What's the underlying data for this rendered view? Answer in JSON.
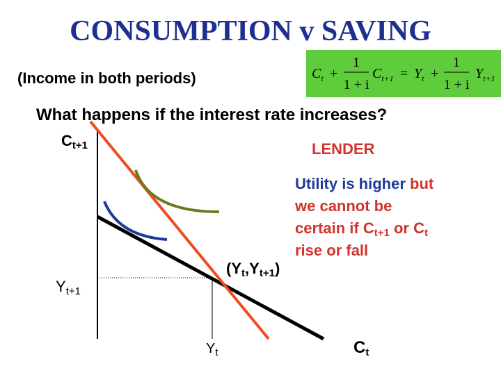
{
  "header": {
    "title": "CONSUMPTION v SAVING",
    "subtitle": "(Income in both periods)"
  },
  "equation": {
    "term_1": {
      "base": "C",
      "sub": "t"
    },
    "plus_1": "+",
    "fraction_1": {
      "num": "1",
      "den": "1 + i"
    },
    "term_2": {
      "base": "C",
      "sub": "t+1"
    },
    "equals": "=",
    "term_3": {
      "base": "Y",
      "sub": "t"
    },
    "plus_2": "+",
    "fraction_2": {
      "num": "1",
      "den": "1 + i"
    },
    "term_4": {
      "base": "Y",
      "sub": "t+1"
    }
  },
  "question": "What happens if the interest rate increases?",
  "diagram": {
    "y_axis_label": {
      "base": "C",
      "sub": "t+1"
    },
    "x_axis_label": {
      "base": "C",
      "sub": "t"
    },
    "y_endowment_label": {
      "base": "Y",
      "sub": "t+1"
    },
    "x_endowment_label": {
      "base": "Y",
      "sub": "t"
    },
    "point_label": {
      "open": "(",
      "x": {
        "base": "Y",
        "sub": "t"
      },
      "sep": ",",
      "y": {
        "base": "Y",
        "sub": "t+1"
      },
      "close": ")"
    },
    "lender_label": "LENDER"
  },
  "note": {
    "line_1": {
      "blue": "Utility is higher",
      "red": "but"
    },
    "line_2": "we cannot be",
    "line_3": {
      "lead": "certain if",
      "c1": {
        "base": "C",
        "sub": "t+1"
      },
      "or": "or",
      "c2": {
        "base": "C",
        "sub": "t"
      }
    },
    "line_4": "rise or fall"
  }
}
